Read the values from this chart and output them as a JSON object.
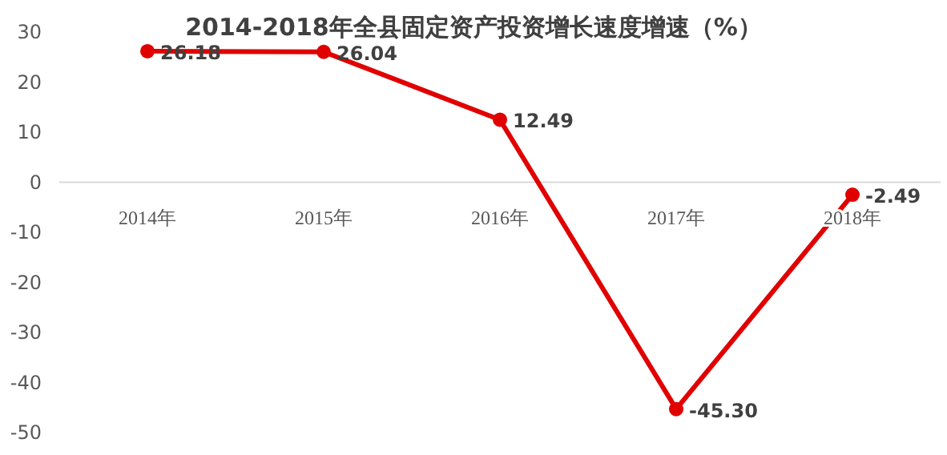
{
  "chart_data": {
    "type": "line",
    "title": "2014-2018年全县固定资产投资增长速度增速（%）",
    "categories": [
      "2014年",
      "2015年",
      "2016年",
      "2017年",
      "2018年"
    ],
    "values": [
      26.18,
      26.04,
      12.49,
      -45.3,
      -2.49
    ],
    "value_labels": [
      "26.18",
      "26.04",
      "12.49",
      "-45.30",
      "-2.49"
    ],
    "color": "#e00000",
    "marker": "circle",
    "line_style": "solid",
    "ylim": [
      -50,
      30
    ],
    "yticks": [
      -50,
      -40,
      -30,
      -20,
      -10,
      0,
      10,
      20,
      30
    ]
  }
}
